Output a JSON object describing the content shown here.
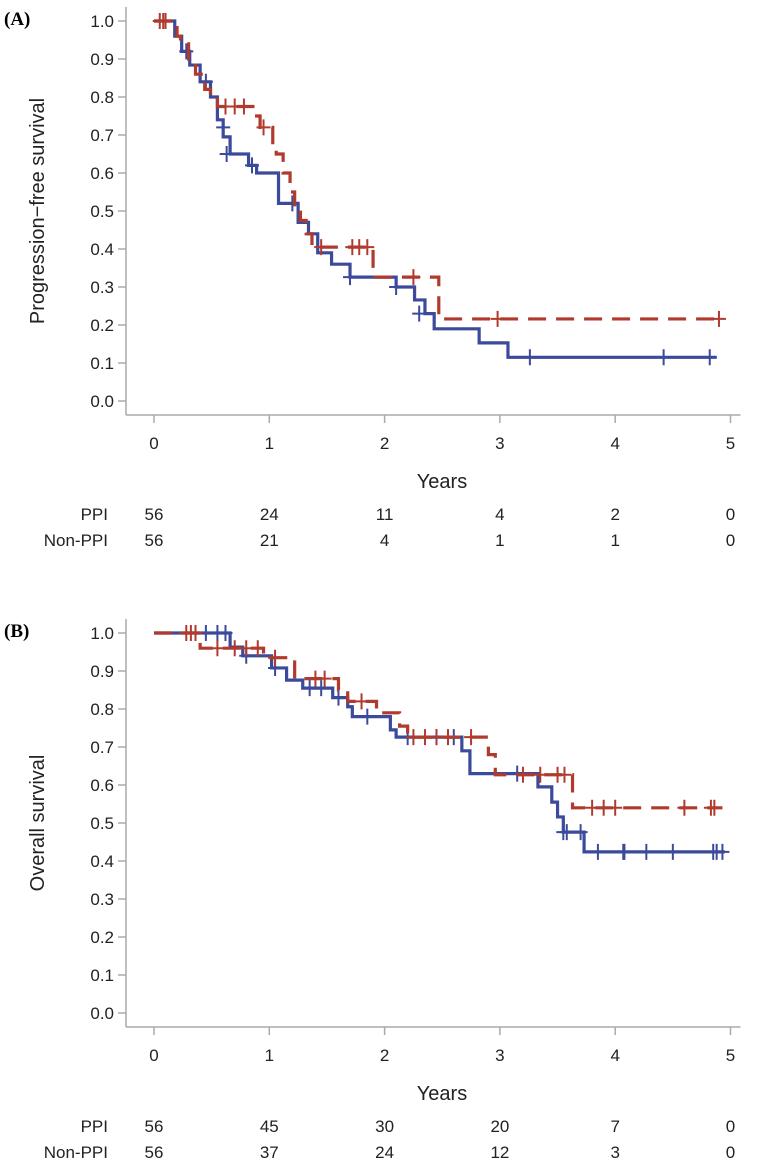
{
  "colors": {
    "ppi": "#b03a2e",
    "non_ppi": "#3b4a9a",
    "axis": "#aaaaaa"
  },
  "chart_data": [
    {
      "type": "line",
      "subtype": "kaplan-meier",
      "panel_label": "(A)",
      "ylabel": "Progression−free survival",
      "xlabel": "Years",
      "xlim": [
        0,
        5
      ],
      "ylim": [
        0,
        1
      ],
      "x_ticks": [
        "0",
        "1",
        "2",
        "3",
        "4",
        "5"
      ],
      "y_ticks": [
        "0.0",
        "0.1",
        "0.2",
        "0.3",
        "0.4",
        "0.5",
        "0.6",
        "0.7",
        "0.8",
        "0.9",
        "1.0"
      ],
      "grid": false,
      "series": [
        {
          "name": "PPI",
          "style": "dashed",
          "color_key": "ppi",
          "steps": [
            [
              0,
              1.0
            ],
            [
              0.2,
              0.96
            ],
            [
              0.23,
              0.94
            ],
            [
              0.3,
              0.9
            ],
            [
              0.36,
              0.86
            ],
            [
              0.44,
              0.82
            ],
            [
              0.49,
              0.8
            ],
            [
              0.55,
              0.775
            ],
            [
              0.89,
              0.75
            ],
            [
              0.92,
              0.72
            ],
            [
              1.03,
              0.68
            ],
            [
              1.06,
              0.65
            ],
            [
              1.12,
              0.6
            ],
            [
              1.18,
              0.55
            ],
            [
              1.22,
              0.51
            ],
            [
              1.27,
              0.475
            ],
            [
              1.32,
              0.44
            ],
            [
              1.37,
              0.405
            ],
            [
              1.9,
              0.326
            ],
            [
              2.47,
              0.216
            ],
            [
              4.91,
              0.216
            ]
          ],
          "censored": [
            [
              0.05,
              1.0
            ],
            [
              0.08,
              1.0
            ],
            [
              0.1,
              1.0
            ],
            [
              0.62,
              0.775
            ],
            [
              0.7,
              0.775
            ],
            [
              0.78,
              0.775
            ],
            [
              0.95,
              0.72
            ],
            [
              1.45,
              0.405
            ],
            [
              1.72,
              0.405
            ],
            [
              1.78,
              0.405
            ],
            [
              1.85,
              0.405
            ],
            [
              2.25,
              0.326
            ],
            [
              2.98,
              0.216
            ],
            [
              4.9,
              0.216
            ]
          ]
        },
        {
          "name": "Non-PPI",
          "style": "solid",
          "color_key": "non_ppi",
          "steps": [
            [
              0,
              1.0
            ],
            [
              0.18,
              0.96
            ],
            [
              0.24,
              0.92
            ],
            [
              0.31,
              0.884
            ],
            [
              0.4,
              0.84
            ],
            [
              0.49,
              0.8
            ],
            [
              0.55,
              0.74
            ],
            [
              0.6,
              0.695
            ],
            [
              0.66,
              0.65
            ],
            [
              0.82,
              0.62
            ],
            [
              0.89,
              0.6
            ],
            [
              1.08,
              0.52
            ],
            [
              1.25,
              0.47
            ],
            [
              1.34,
              0.44
            ],
            [
              1.42,
              0.39
            ],
            [
              1.54,
              0.36
            ],
            [
              1.7,
              0.326
            ],
            [
              2.1,
              0.3
            ],
            [
              2.26,
              0.266
            ],
            [
              2.35,
              0.23
            ],
            [
              2.43,
              0.19
            ],
            [
              2.82,
              0.153
            ],
            [
              3.07,
              0.115
            ],
            [
              4.88,
              0.115
            ]
          ],
          "censored": [
            [
              0.28,
              0.92
            ],
            [
              0.45,
              0.84
            ],
            [
              0.6,
              0.72
            ],
            [
              0.63,
              0.65
            ],
            [
              0.85,
              0.62
            ],
            [
              1.2,
              0.52
            ],
            [
              1.7,
              0.326
            ],
            [
              2.1,
              0.3
            ],
            [
              2.3,
              0.23
            ],
            [
              3.26,
              0.115
            ],
            [
              4.42,
              0.115
            ],
            [
              4.82,
              0.115
            ]
          ]
        }
      ],
      "at_risk": {
        "rows": [
          {
            "label": "PPI",
            "values": [
              "56",
              "24",
              "11",
              "4",
              "2",
              "0"
            ]
          },
          {
            "label": "Non-PPI",
            "values": [
              "56",
              "21",
              "4",
              "1",
              "1",
              "0"
            ]
          }
        ]
      }
    },
    {
      "type": "line",
      "subtype": "kaplan-meier",
      "panel_label": "(B)",
      "ylabel": "Overall survival",
      "xlabel": "Years",
      "xlim": [
        0,
        5
      ],
      "ylim": [
        0,
        1
      ],
      "x_ticks": [
        "0",
        "1",
        "2",
        "3",
        "4",
        "5"
      ],
      "y_ticks": [
        "0.0",
        "0.1",
        "0.2",
        "0.3",
        "0.4",
        "0.5",
        "0.6",
        "0.7",
        "0.8",
        "0.9",
        "1.0"
      ],
      "grid": false,
      "series": [
        {
          "name": "PPI",
          "style": "dashed",
          "color_key": "ppi",
          "steps": [
            [
              0,
              1.0
            ],
            [
              0.4,
              0.96
            ],
            [
              0.95,
              0.935
            ],
            [
              1.22,
              0.88
            ],
            [
              1.6,
              0.85
            ],
            [
              1.68,
              0.82
            ],
            [
              1.93,
              0.79
            ],
            [
              2.13,
              0.755
            ],
            [
              2.2,
              0.726
            ],
            [
              2.9,
              0.68
            ],
            [
              2.96,
              0.627
            ],
            [
              3.63,
              0.54
            ],
            [
              4.93,
              0.54
            ]
          ],
          "censored": [
            [
              0.28,
              1.0
            ],
            [
              0.32,
              1.0
            ],
            [
              0.36,
              1.0
            ],
            [
              0.55,
              0.96
            ],
            [
              0.7,
              0.96
            ],
            [
              0.8,
              0.96
            ],
            [
              0.9,
              0.96
            ],
            [
              1.05,
              0.935
            ],
            [
              1.4,
              0.88
            ],
            [
              1.48,
              0.88
            ],
            [
              1.8,
              0.82
            ],
            [
              2.25,
              0.726
            ],
            [
              2.35,
              0.726
            ],
            [
              2.45,
              0.726
            ],
            [
              2.55,
              0.726
            ],
            [
              2.75,
              0.726
            ],
            [
              3.2,
              0.627
            ],
            [
              3.35,
              0.627
            ],
            [
              3.5,
              0.627
            ],
            [
              3.56,
              0.627
            ],
            [
              3.8,
              0.54
            ],
            [
              3.9,
              0.54
            ],
            [
              4.0,
              0.54
            ],
            [
              4.6,
              0.54
            ],
            [
              4.83,
              0.54
            ],
            [
              4.86,
              0.54
            ]
          ]
        },
        {
          "name": "Non-PPI",
          "style": "solid",
          "color_key": "non_ppi",
          "steps": [
            [
              0,
              1.0
            ],
            [
              0.66,
              0.963
            ],
            [
              0.77,
              0.94
            ],
            [
              1.02,
              0.908
            ],
            [
              1.15,
              0.876
            ],
            [
              1.29,
              0.855
            ],
            [
              1.55,
              0.83
            ],
            [
              1.68,
              0.806
            ],
            [
              1.72,
              0.78
            ],
            [
              2.05,
              0.745
            ],
            [
              2.1,
              0.726
            ],
            [
              2.67,
              0.69
            ],
            [
              2.74,
              0.63
            ],
            [
              3.33,
              0.595
            ],
            [
              3.45,
              0.555
            ],
            [
              3.5,
              0.516
            ],
            [
              3.55,
              0.476
            ],
            [
              3.73,
              0.424
            ],
            [
              4.95,
              0.424
            ]
          ],
          "censored": [
            [
              0.45,
              1.0
            ],
            [
              0.55,
              1.0
            ],
            [
              0.62,
              1.0
            ],
            [
              0.8,
              0.94
            ],
            [
              1.05,
              0.908
            ],
            [
              1.35,
              0.855
            ],
            [
              1.45,
              0.855
            ],
            [
              1.6,
              0.83
            ],
            [
              1.85,
              0.78
            ],
            [
              2.2,
              0.726
            ],
            [
              2.45,
              0.726
            ],
            [
              2.6,
              0.726
            ],
            [
              3.15,
              0.63
            ],
            [
              3.55,
              0.476
            ],
            [
              3.58,
              0.476
            ],
            [
              3.7,
              0.476
            ],
            [
              3.85,
              0.424
            ],
            [
              4.07,
              0.424
            ],
            [
              4.08,
              0.424
            ],
            [
              4.27,
              0.424
            ],
            [
              4.5,
              0.424
            ],
            [
              4.85,
              0.424
            ],
            [
              4.88,
              0.424
            ],
            [
              4.93,
              0.424
            ]
          ]
        }
      ],
      "at_risk": {
        "rows": [
          {
            "label": "PPI",
            "values": [
              "56",
              "45",
              "30",
              "20",
              "7",
              "0"
            ]
          },
          {
            "label": "Non-PPI",
            "values": [
              "56",
              "37",
              "24",
              "12",
              "3",
              "0"
            ]
          }
        ]
      }
    }
  ]
}
